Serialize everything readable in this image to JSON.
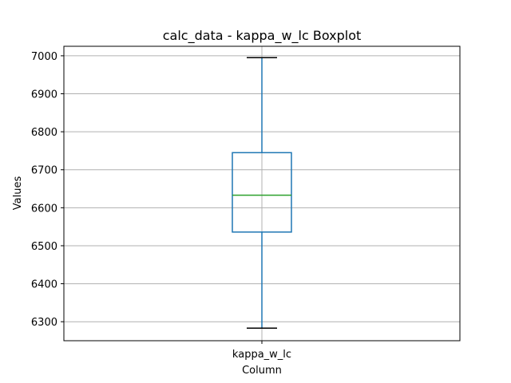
{
  "chart_data": {
    "type": "boxplot",
    "title": "calc_data - kappa_w_lc Boxplot",
    "xlabel": "Column",
    "ylabel": "Values",
    "categories": [
      "kappa_w_lc"
    ],
    "boxes": [
      {
        "name": "kappa_w_lc",
        "whisker_low": 6283,
        "q1": 6536,
        "median": 6633,
        "q3": 6745,
        "whisker_high": 6995
      }
    ],
    "ylim": [
      6250,
      7025
    ],
    "yticks": [
      6300,
      6400,
      6500,
      6600,
      6700,
      6800,
      6900,
      7000
    ],
    "grid": true,
    "colors": {
      "box": "#1f77b4",
      "median": "#2ca02c",
      "caps": "#000000",
      "grid": "#b0b0b0",
      "frame": "#000000"
    }
  }
}
